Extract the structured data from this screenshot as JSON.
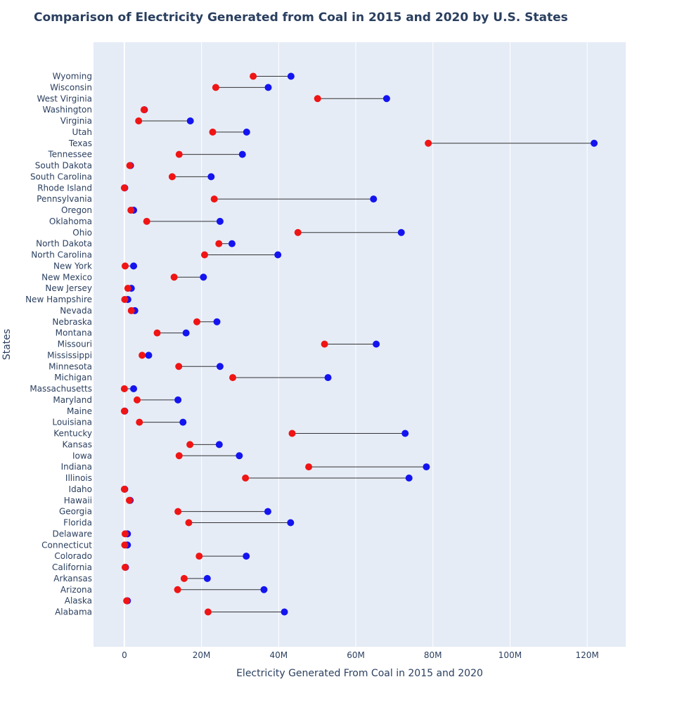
{
  "chart_data": {
    "type": "dumbbell",
    "title": "Comparison of Electricity Generated from Coal in 2015 and 2020 by U.S. States",
    "xlabel": "Electricity Generated From Coal in 2015 and 2020",
    "ylabel": "States",
    "xlim": [
      -8000000,
      130000000
    ],
    "x_ticks": [
      0,
      20000000,
      40000000,
      60000000,
      80000000,
      100000000,
      120000000
    ],
    "x_tick_labels": [
      "0",
      "20M",
      "40M",
      "60M",
      "80M",
      "100M",
      "120M"
    ],
    "grid": true,
    "legend": "none",
    "colors": {
      "2015": "#1414f0",
      "2020": "#f01414",
      "connector": "#333333",
      "plot_bg": "#e5ecf6"
    },
    "categories": [
      "Alabama",
      "Alaska",
      "Arizona",
      "Arkansas",
      "California",
      "Colorado",
      "Connecticut",
      "Delaware",
      "Florida",
      "Georgia",
      "Hawaii",
      "Idaho",
      "Illinois",
      "Indiana",
      "Iowa",
      "Kansas",
      "Kentucky",
      "Louisiana",
      "Maine",
      "Maryland",
      "Massachusetts",
      "Michigan",
      "Minnesota",
      "Mississippi",
      "Missouri",
      "Montana",
      "Nebraska",
      "Nevada",
      "New Hampshire",
      "New Jersey",
      "New Mexico",
      "New York",
      "North Carolina",
      "North Dakota",
      "Ohio",
      "Oklahoma",
      "Oregon",
      "Pennsylvania",
      "Rhode Island",
      "South Carolina",
      "South Dakota",
      "Tennessee",
      "Texas",
      "Utah",
      "Virginia",
      "Washington",
      "West Virginia",
      "Wisconsin",
      "Wyoming"
    ],
    "series": [
      {
        "key": "2015",
        "values": [
          41500000,
          800000,
          36200000,
          21500000,
          300000,
          31600000,
          800000,
          800000,
          43100000,
          37200000,
          1500000,
          100000,
          73800000,
          78300000,
          29800000,
          24600000,
          72800000,
          15200000,
          100000,
          13900000,
          2400000,
          52800000,
          24800000,
          6300000,
          65300000,
          16000000,
          24000000,
          2700000,
          900000,
          1800000,
          20500000,
          2400000,
          39800000,
          27900000,
          71800000,
          24800000,
          2400000,
          64600000,
          100000,
          22500000,
          1600000,
          30600000,
          121800000,
          31700000,
          17100000,
          5200000,
          68000000,
          37300000,
          43200000
        ]
      },
      {
        "key": "2020",
        "values": [
          21700000,
          600000,
          13800000,
          15500000,
          200000,
          19400000,
          100000,
          200000,
          16700000,
          13900000,
          1300000,
          0,
          31400000,
          47800000,
          14200000,
          17000000,
          43500000,
          3900000,
          0,
          3300000,
          0,
          28100000,
          14100000,
          4600000,
          51900000,
          8500000,
          18800000,
          1800000,
          100000,
          900000,
          12900000,
          200000,
          20800000,
          24500000,
          45000000,
          5800000,
          1700000,
          23300000,
          0,
          12400000,
          1400000,
          14200000,
          78800000,
          22900000,
          3700000,
          5100000,
          50100000,
          23700000,
          33400000
        ]
      }
    ]
  }
}
